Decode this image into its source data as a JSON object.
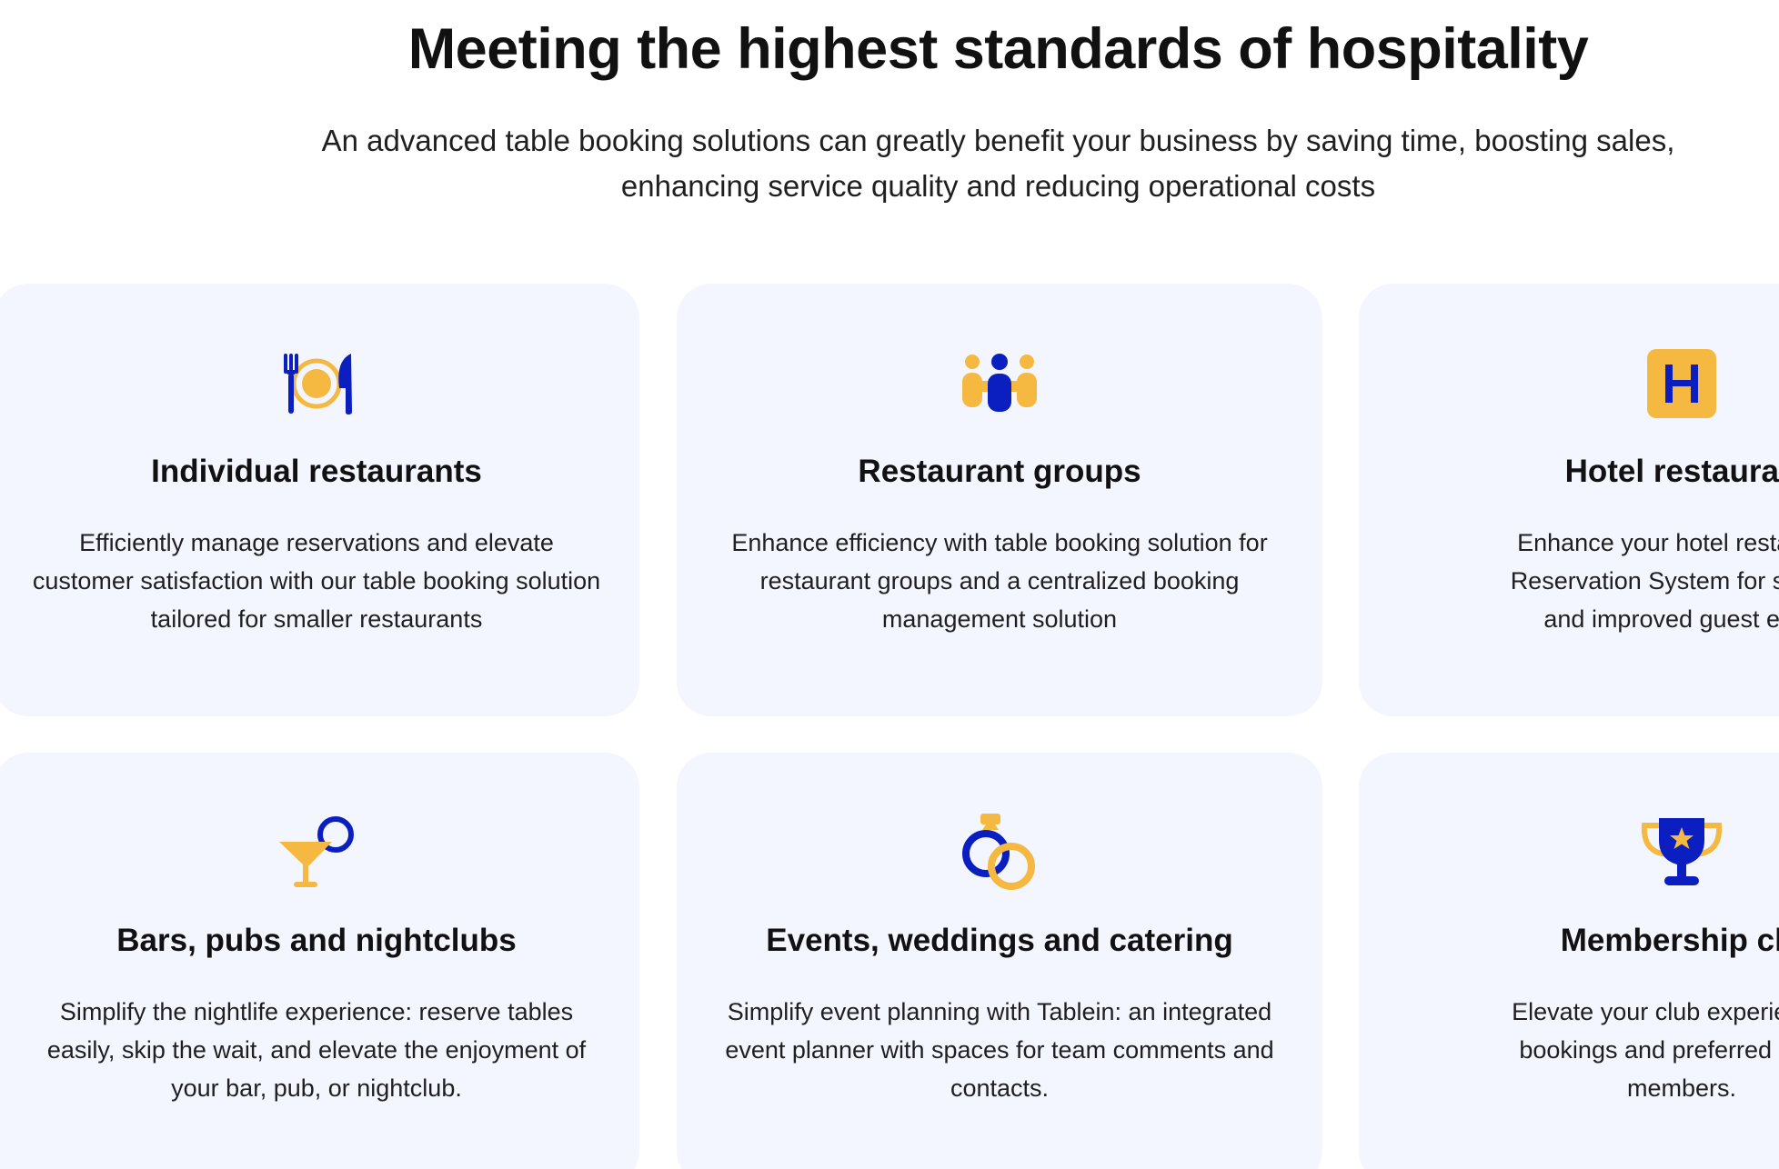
{
  "hero": {
    "title": "Meeting the highest standards of hospitality",
    "subtitle": "An advanced table booking solutions can greatly benefit your business by saving time, boosting sales, enhancing service quality and reducing operational costs"
  },
  "colors": {
    "card_bg": "#f3f6fe",
    "accent_blue": "#0b1fc1",
    "accent_yellow": "#f5b942"
  },
  "cards": [
    {
      "icon": "dining-icon",
      "title": "Individual restaurants",
      "description": "Efficiently manage reservations and elevate customer satisfaction with our table booking solution tailored for smaller restaurants"
    },
    {
      "icon": "people-group-icon",
      "title": "Restaurant groups",
      "description": "Enhance efficiency with table booking solution for restaurant groups and a centralized booking management solution"
    },
    {
      "icon": "hotel-icon",
      "title": "Hotel restauran",
      "description_lines": [
        "Enhance your hotel restaurant",
        "Reservation System for streaml",
        "and improved guest expe"
      ]
    },
    {
      "icon": "cocktail-icon",
      "title": "Bars, pubs and nightclubs",
      "description": "Simplify the nightlife experience: reserve tables easily, skip the wait, and elevate the enjoyment of your bar, pub, or nightclub."
    },
    {
      "icon": "wedding-rings-icon",
      "title": "Events, weddings and catering",
      "description": "Simplify event planning with Tablein: an integrated event planner with spaces for team comments and contacts."
    },
    {
      "icon": "trophy-icon",
      "title": "Membership clu",
      "description_lines": [
        "Elevate your club experience w",
        "bookings and preferred seatin",
        "members."
      ]
    }
  ]
}
